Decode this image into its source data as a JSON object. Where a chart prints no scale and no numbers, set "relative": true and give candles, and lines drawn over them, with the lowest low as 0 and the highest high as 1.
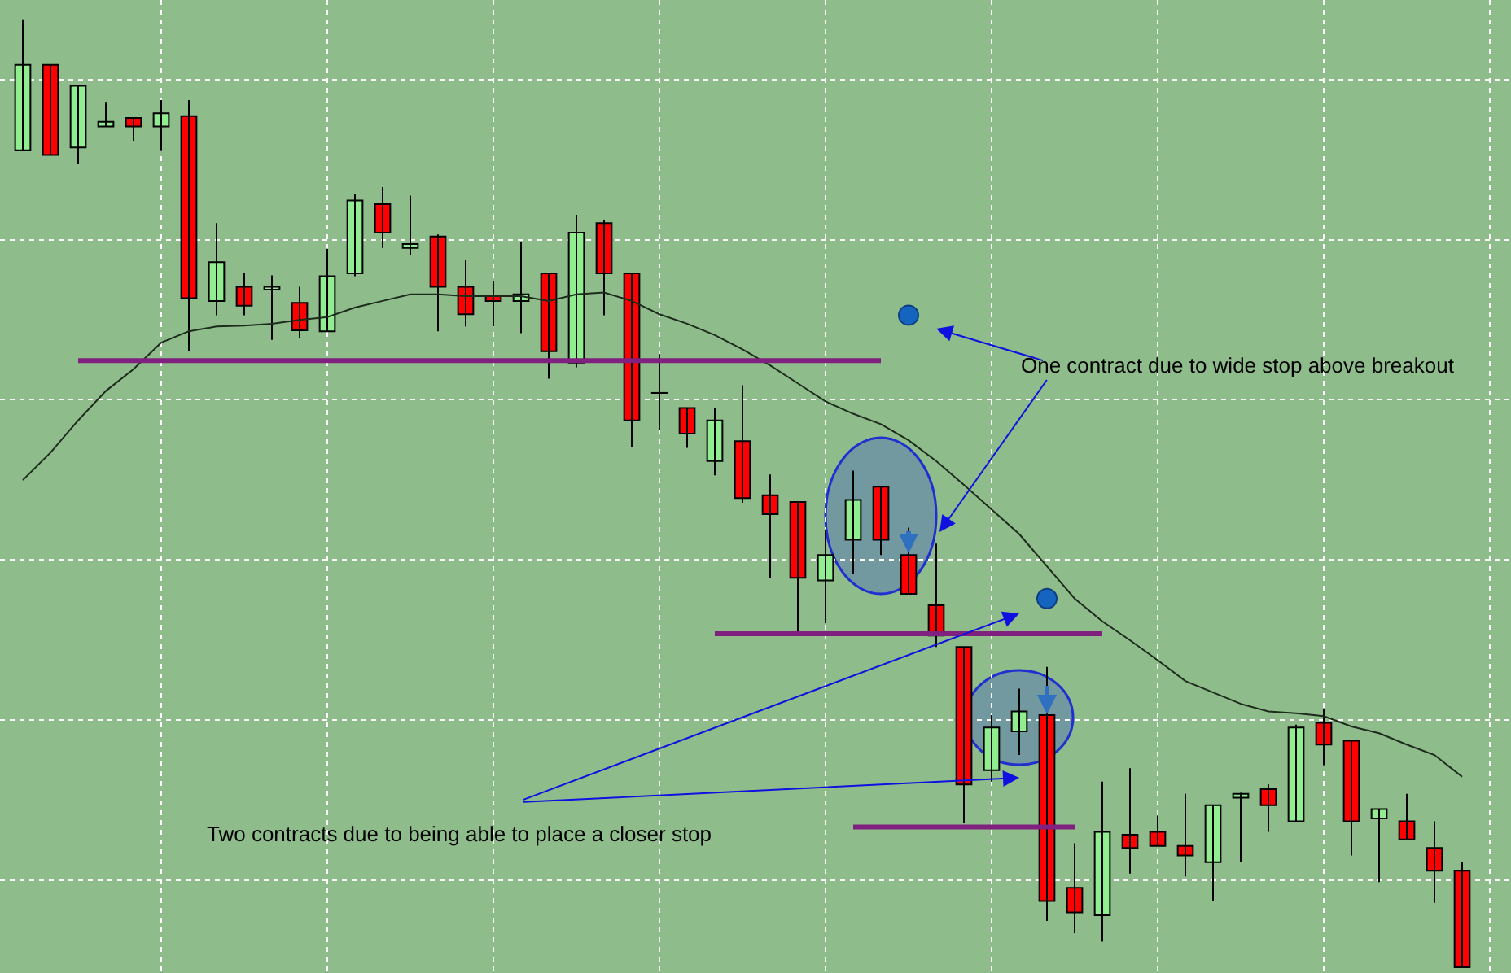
{
  "chart_data": {
    "type": "candlestick",
    "relative": true,
    "grid": true,
    "categories": [
      null,
      null,
      null,
      null,
      null,
      null,
      null,
      null,
      null,
      null,
      null,
      null,
      null,
      null,
      null,
      null,
      null,
      null,
      null,
      null,
      null,
      null,
      null,
      null,
      null,
      null,
      null,
      null,
      null,
      null,
      null,
      null,
      null,
      null,
      null,
      null,
      null,
      null,
      null,
      null,
      null,
      null,
      null,
      null,
      null,
      null,
      null,
      null,
      null,
      null,
      null,
      null,
      null
    ],
    "ohlc": [
      [
        0.862,
        1,
        0.862,
        0.952
      ],
      [
        0.952,
        0.952,
        0.857,
        0.857
      ],
      [
        0.865,
        0.93,
        0.848,
        0.93
      ],
      [
        0.887,
        0.913,
        0.887,
        0.892
      ],
      [
        0.896,
        0.896,
        0.872,
        0.887
      ],
      [
        0.887,
        0.915,
        0.862,
        0.901
      ],
      [
        0.898,
        0.915,
        0.65,
        0.706
      ],
      [
        0.703,
        0.785,
        0.688,
        0.744
      ],
      [
        0.718,
        0.732,
        0.688,
        0.698
      ],
      [
        0.715,
        0.73,
        0.662,
        0.718
      ],
      [
        0.701,
        0.718,
        0.664,
        0.672
      ],
      [
        0.671,
        0.758,
        0.671,
        0.729
      ],
      [
        0.732,
        0.816,
        0.729,
        0.809
      ],
      [
        0.805,
        0.823,
        0.759,
        0.775
      ],
      [
        0.759,
        0.814,
        0.751,
        0.763
      ],
      [
        0.771,
        0.773,
        0.671,
        0.718
      ],
      [
        0.718,
        0.746,
        0.676,
        0.689
      ],
      [
        0.708,
        0.724,
        0.676,
        0.703
      ],
      [
        0.703,
        0.765,
        0.669,
        0.71
      ],
      [
        0.732,
        0.732,
        0.621,
        0.65
      ],
      [
        0.638,
        0.794,
        0.633,
        0.775
      ],
      [
        0.785,
        0.788,
        0.688,
        0.732
      ],
      [
        0.732,
        0.732,
        0.549,
        0.577
      ],
      [
        0.606,
        0.647,
        0.567,
        0.606
      ],
      [
        0.59,
        0.59,
        0.548,
        0.563
      ],
      [
        0.534,
        0.59,
        0.519,
        0.577
      ],
      [
        0.555,
        0.614,
        0.49,
        0.495
      ],
      [
        0.498,
        0.52,
        0.411,
        0.478
      ],
      [
        0.491,
        0.491,
        0.353,
        0.411
      ],
      [
        0.408,
        0.462,
        0.363,
        0.435
      ],
      [
        0.451,
        0.524,
        0.415,
        0.493
      ],
      [
        0.507,
        0.507,
        0.435,
        0.451
      ],
      [
        0.435,
        0.464,
        0.394,
        0.394
      ],
      [
        0.382,
        0.447,
        0.338,
        0.35
      ],
      [
        0.338,
        0.338,
        0.152,
        0.193
      ],
      [
        0.208,
        0.266,
        0.196,
        0.253
      ],
      [
        0.249,
        0.294,
        0.224,
        0.27
      ],
      [
        0.266,
        0.317,
        0.049,
        0.07
      ],
      [
        0.084,
        0.131,
        0.036,
        0.058
      ],
      [
        0.055,
        0.196,
        0.027,
        0.143
      ],
      [
        0.14,
        0.21,
        0.099,
        0.126
      ],
      [
        0.143,
        0.16,
        0.128,
        0.128
      ],
      [
        0.128,
        0.183,
        0.096,
        0.118
      ],
      [
        0.111,
        0.171,
        0.07,
        0.171
      ],
      [
        0.179,
        0.184,
        0.111,
        0.183
      ],
      [
        0.188,
        0.193,
        0.143,
        0.171
      ],
      [
        0.154,
        0.256,
        0.154,
        0.253
      ],
      [
        0.258,
        0.273,
        0.213,
        0.235
      ],
      [
        0.239,
        0.239,
        0.118,
        0.154
      ],
      [
        0.157,
        0.167,
        0.09,
        0.167
      ],
      [
        0.154,
        0.183,
        0.135,
        0.135
      ],
      [
        0.126,
        0.154,
        0.068,
        0.102
      ],
      [
        0.102,
        0.111,
        0,
        0
      ]
    ],
    "colors": [
      "#90ee90",
      "#ff0000",
      "#90ee90",
      "#90ee90",
      "#ff0000",
      "#90ee90",
      "#ff0000",
      "#90ee90",
      "#ff0000",
      "#90ee90",
      "#ff0000",
      "#90ee90",
      "#90ee90",
      "#ff0000",
      "#90ee90",
      "#ff0000",
      "#ff0000",
      "#ff0000",
      "#90ee90",
      "#ff0000",
      "#90ee90",
      "#ff0000",
      "#ff0000",
      "#000000",
      "#ff0000",
      "#90ee90",
      "#ff0000",
      "#ff0000",
      "#ff0000",
      "#90ee90",
      "#90ee90",
      "#ff0000",
      "#ff0000",
      "#ff0000",
      "#ff0000",
      "#90ee90",
      "#90ee90",
      "#ff0000",
      "#ff0000",
      "#90ee90",
      "#ff0000",
      "#ff0000",
      "#ff0000",
      "#90ee90",
      "#90ee90",
      "#ff0000",
      "#90ee90",
      "#ff0000",
      "#ff0000",
      "#90ee90",
      "#ff0000",
      "#ff0000",
      "#ff0000"
    ],
    "series": [
      {
        "type": "line",
        "color": "#1c2b1c",
        "line_style": "solid",
        "values": [
          0.514,
          0.543,
          0.577,
          0.608,
          0.631,
          0.659,
          0.671,
          0.676,
          0.677,
          0.679,
          0.683,
          0.686,
          0.696,
          0.703,
          0.71,
          0.71,
          0.708,
          0.708,
          0.708,
          0.703,
          0.71,
          0.712,
          0.703,
          0.689,
          0.679,
          0.667,
          0.652,
          0.635,
          0.616,
          0.597,
          0.584,
          0.573,
          0.556,
          0.534,
          0.509,
          0.483,
          0.457,
          0.423,
          0.389,
          0.365,
          0.345,
          0.324,
          0.302,
          0.29,
          0.278,
          0.27,
          0.268,
          0.265,
          0.254,
          0.247,
          0.235,
          0.224,
          0.201
        ]
      },
      {
        "type": "line",
        "color": "#80207f",
        "line_style": "solid",
        "values": [
          null,
          null,
          0.64,
          0.64,
          0.64,
          0.64,
          0.64,
          0.64,
          0.64,
          0.64,
          0.64,
          0.64,
          0.64,
          0.64,
          0.64,
          0.64,
          0.64,
          0.64,
          0.64,
          0.64,
          0.64,
          0.64,
          0.64,
          0.64,
          0.64,
          0.64,
          0.64,
          0.64,
          0.64,
          0.64,
          0.64,
          0.64,
          null,
          null,
          null,
          null,
          null,
          null,
          null,
          null,
          null,
          null,
          null,
          null,
          null,
          null,
          null,
          null,
          null,
          null,
          null,
          null,
          null
        ]
      },
      {
        "type": "line",
        "color": "#80207f",
        "line_style": "solid",
        "values": [
          null,
          null,
          null,
          null,
          null,
          null,
          null,
          null,
          null,
          null,
          null,
          null,
          null,
          null,
          null,
          null,
          null,
          null,
          null,
          null,
          null,
          null,
          null,
          null,
          null,
          0.352,
          0.352,
          0.352,
          0.352,
          0.352,
          0.352,
          0.352,
          0.352,
          0.352,
          0.352,
          0.352,
          0.352,
          0.352,
          0.352,
          0.352,
          null,
          null,
          null,
          null,
          null,
          null,
          null,
          null,
          null,
          null,
          null,
          null,
          null
        ]
      },
      {
        "type": "line",
        "color": "#80207f",
        "line_style": "solid",
        "values": [
          null,
          null,
          null,
          null,
          null,
          null,
          null,
          null,
          null,
          null,
          null,
          null,
          null,
          null,
          null,
          null,
          null,
          null,
          null,
          null,
          null,
          null,
          null,
          null,
          null,
          null,
          null,
          null,
          null,
          null,
          0.148,
          0.148,
          0.148,
          0.148,
          0.148,
          0.148,
          0.148,
          0.148,
          0.148,
          null,
          null,
          null,
          null,
          null,
          null,
          null,
          null,
          null,
          null,
          null,
          null,
          null,
          null
        ]
      },
      {
        "type": "scatter",
        "color": "#1565c0",
        "marker": "circle",
        "values": [
          null,
          null,
          null,
          null,
          null,
          null,
          null,
          null,
          null,
          null,
          null,
          null,
          null,
          null,
          null,
          null,
          null,
          null,
          null,
          null,
          null,
          null,
          null,
          null,
          null,
          null,
          null,
          null,
          null,
          null,
          null,
          null,
          0.688,
          null,
          null,
          null,
          null,
          0.389,
          null,
          null,
          null,
          null,
          null,
          null,
          null,
          null,
          null,
          null,
          null,
          null,
          null,
          null,
          null
        ]
      }
    ],
    "annotations": [
      "One contract due to wide stop above breakout",
      "Two contracts due to being able to place a closer stop"
    ]
  }
}
